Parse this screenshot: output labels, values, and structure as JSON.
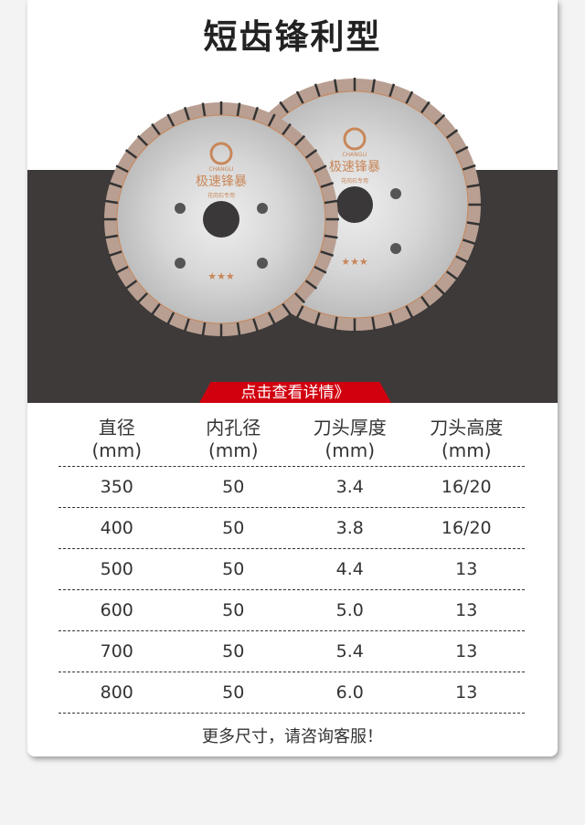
{
  "title": "短齿锋利型",
  "blade_logo": {
    "brand": "CHANGLI",
    "name": "极速锋暴",
    "subtitle": "花岗石专用"
  },
  "details_button": "点击查看详情》",
  "table": {
    "headers": [
      [
        "直径",
        "(mm)"
      ],
      [
        "内孔径",
        "(mm)"
      ],
      [
        "刀头厚度",
        "(mm)"
      ],
      [
        "刀头高度",
        "(mm)"
      ]
    ],
    "rows": [
      [
        "350",
        "50",
        "3.4",
        "16/20"
      ],
      [
        "400",
        "50",
        "3.8",
        "16/20"
      ],
      [
        "500",
        "50",
        "4.4",
        "13"
      ],
      [
        "600",
        "50",
        "5.0",
        "13"
      ],
      [
        "700",
        "50",
        "5.4",
        "13"
      ],
      [
        "800",
        "50",
        "6.0",
        "13"
      ]
    ]
  },
  "footer": "更多尺寸，请咨询客服！",
  "colors": {
    "accent": "#d1000f",
    "band": "#3e3a3a",
    "logo": "#c8875a"
  }
}
